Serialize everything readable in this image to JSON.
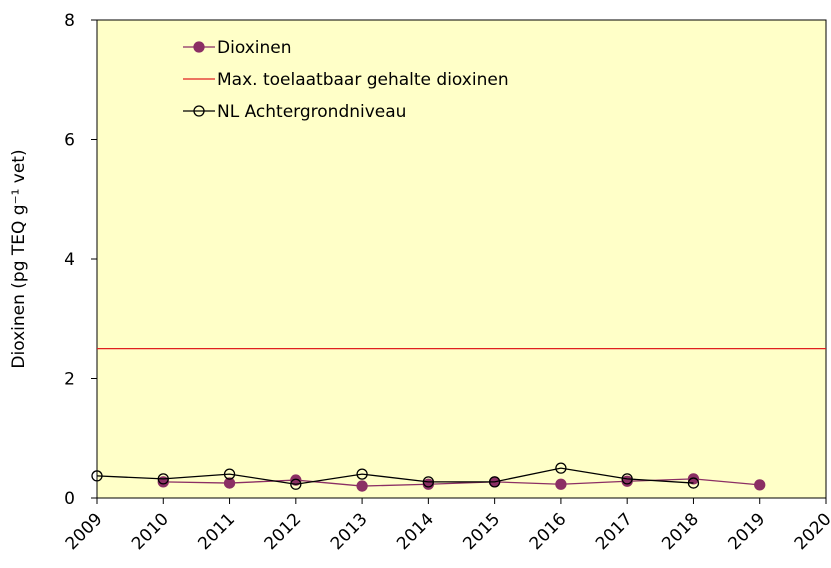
{
  "chart_data": {
    "type": "line",
    "ylabel": "Dioxinen  (pg TEQ g⁻¹ vet)",
    "xlim": [
      2009,
      2020
    ],
    "xticks": [
      2009,
      2010,
      2011,
      2012,
      2013,
      2014,
      2015,
      2016,
      2017,
      2018,
      2019,
      2020
    ],
    "ylim": [
      0,
      8
    ],
    "yticks": [
      0,
      2,
      4,
      6,
      8
    ],
    "background": "#ffffc8",
    "series": [
      {
        "name": "Dioxinen",
        "color": "#8b2f64",
        "marker": "filled",
        "x": [
          2010,
          2011,
          2012,
          2013,
          2014,
          2015,
          2016,
          2017,
          2018,
          2019
        ],
        "values": [
          0.27,
          0.25,
          0.3,
          0.2,
          0.23,
          0.27,
          0.23,
          0.28,
          0.32,
          0.22
        ]
      },
      {
        "name": "Max. toelaatbaar gehalte dioxinen",
        "color": "#e02020",
        "marker": "none",
        "x": [
          2009,
          2020
        ],
        "values": [
          2.5,
          2.5
        ]
      },
      {
        "name": "NL Achtergrondniveau",
        "color": "#000000",
        "marker": "open",
        "x": [
          2009,
          2010,
          2011,
          2012,
          2013,
          2014,
          2015,
          2016,
          2017,
          2018
        ],
        "values": [
          0.37,
          0.32,
          0.4,
          0.23,
          0.4,
          0.27,
          0.27,
          0.5,
          0.32,
          0.25
        ]
      }
    ]
  }
}
